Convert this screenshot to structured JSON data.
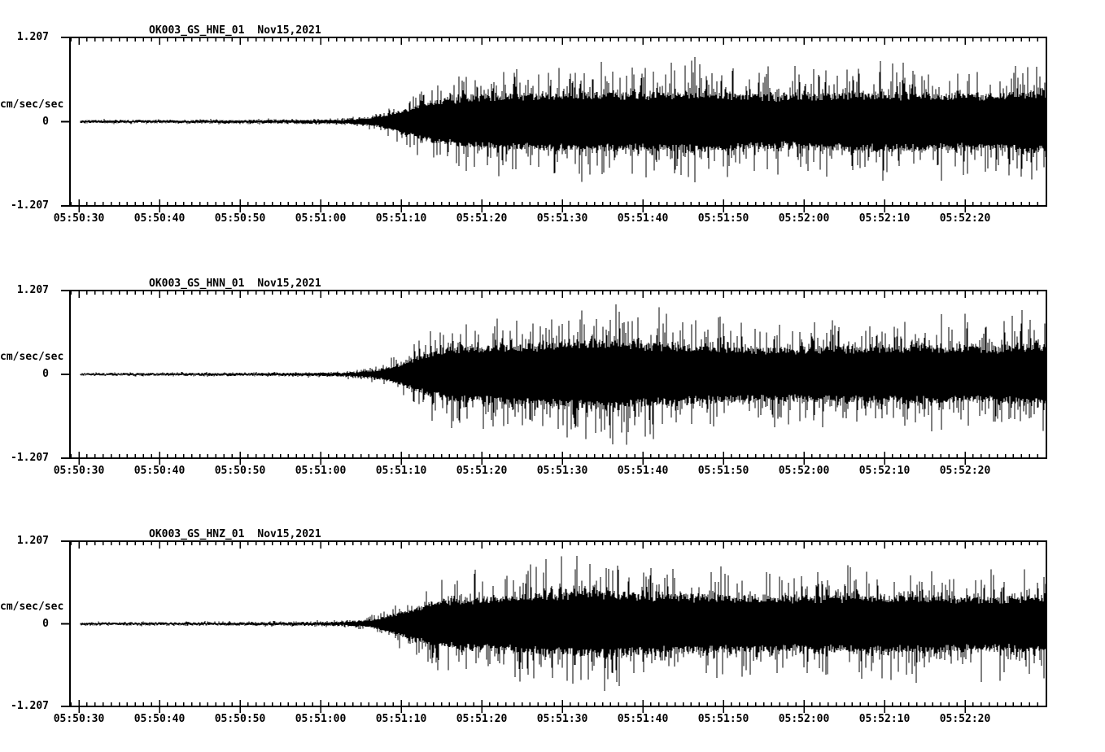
{
  "page": {
    "background_color": "#ffffff",
    "ink_color": "#000000",
    "description": "Three-channel strong-motion seismogram record display"
  },
  "chart_data": [
    {
      "type": "line",
      "kind": "seismogram-waveform",
      "station": "OK003_GS_HNE_01",
      "date": "Nov15,2021",
      "title": "OK003_GS_HNE_01  Nov15,2021",
      "ylabel": "cm/sec/sec",
      "ymax_label": "1.207",
      "yzero_label": "0",
      "ymin_label": "-1.207",
      "ylim": [
        -1.207,
        1.207
      ],
      "xtick_labels": [
        "05:50:30",
        "05:50:40",
        "05:50:50",
        "05:51:00",
        "05:51:10",
        "05:51:20",
        "05:51:30",
        "05:51:40",
        "05:51:50",
        "05:52:00",
        "05:52:10",
        "05:52:20"
      ],
      "x_span_seconds": 120,
      "seconds_per_minor_tick": 1,
      "seconds_per_major_tick": 10,
      "grid": false,
      "legend": false,
      "envelope_t_amp": [
        [
          0,
          0.03
        ],
        [
          10,
          0.032
        ],
        [
          20,
          0.036
        ],
        [
          28,
          0.04
        ],
        [
          33,
          0.055
        ],
        [
          36,
          0.1
        ],
        [
          38,
          0.18
        ],
        [
          40,
          0.32
        ],
        [
          42,
          0.45
        ],
        [
          44,
          0.6
        ],
        [
          47,
          0.7
        ],
        [
          52,
          0.78
        ],
        [
          58,
          0.8
        ],
        [
          64,
          0.83
        ],
        [
          70,
          0.8
        ],
        [
          76,
          0.85
        ],
        [
          82,
          0.78
        ],
        [
          88,
          0.75
        ],
        [
          94,
          0.8
        ],
        [
          100,
          0.83
        ],
        [
          106,
          0.8
        ],
        [
          112,
          0.78
        ],
        [
          117,
          0.84
        ],
        [
          120,
          0.88
        ]
      ],
      "noise_seed": 11
    },
    {
      "type": "line",
      "kind": "seismogram-waveform",
      "station": "OK003_GS_HNN_01",
      "date": "Nov15,2021",
      "title": "OK003_GS_HNN_01  Nov15,2021",
      "ylabel": "cm/sec/sec",
      "ymax_label": "1.207",
      "yzero_label": "0",
      "ymin_label": "-1.207",
      "ylim": [
        -1.207,
        1.207
      ],
      "xtick_labels": [
        "05:50:30",
        "05:50:40",
        "05:50:50",
        "05:51:00",
        "05:51:10",
        "05:51:20",
        "05:51:30",
        "05:51:40",
        "05:51:50",
        "05:52:00",
        "05:52:10",
        "05:52:20"
      ],
      "x_span_seconds": 120,
      "seconds_per_minor_tick": 1,
      "seconds_per_major_tick": 10,
      "grid": false,
      "legend": false,
      "envelope_t_amp": [
        [
          0,
          0.025
        ],
        [
          10,
          0.028
        ],
        [
          20,
          0.032
        ],
        [
          28,
          0.038
        ],
        [
          33,
          0.05
        ],
        [
          36,
          0.09
        ],
        [
          38,
          0.16
        ],
        [
          40,
          0.3
        ],
        [
          42,
          0.5
        ],
        [
          44,
          0.65
        ],
        [
          47,
          0.78
        ],
        [
          52,
          0.82
        ],
        [
          58,
          0.88
        ],
        [
          62,
          0.95
        ],
        [
          66,
          1.0
        ],
        [
          70,
          0.9
        ],
        [
          76,
          0.82
        ],
        [
          82,
          0.78
        ],
        [
          88,
          0.75
        ],
        [
          94,
          0.78
        ],
        [
          100,
          0.8
        ],
        [
          106,
          0.82
        ],
        [
          112,
          0.78
        ],
        [
          117,
          0.85
        ],
        [
          120,
          0.88
        ]
      ],
      "noise_seed": 22
    },
    {
      "type": "line",
      "kind": "seismogram-waveform",
      "station": "OK003_GS_HNZ_01",
      "date": "Nov15,2021",
      "title": "OK003_GS_HNZ_01  Nov15,2021",
      "ylabel": "cm/sec/sec",
      "ymax_label": "1.207",
      "yzero_label": "0",
      "ymin_label": "-1.207",
      "ylim": [
        -1.207,
        1.207
      ],
      "xtick_labels": [
        "05:50:30",
        "05:50:40",
        "05:50:50",
        "05:51:00",
        "05:51:10",
        "05:51:20",
        "05:51:30",
        "05:51:40",
        "05:51:50",
        "05:52:00",
        "05:52:10",
        "05:52:20"
      ],
      "x_span_seconds": 120,
      "seconds_per_minor_tick": 1,
      "seconds_per_major_tick": 10,
      "grid": false,
      "legend": false,
      "envelope_t_amp": [
        [
          0,
          0.028
        ],
        [
          10,
          0.03
        ],
        [
          20,
          0.034
        ],
        [
          28,
          0.04
        ],
        [
          33,
          0.055
        ],
        [
          36,
          0.1
        ],
        [
          38,
          0.2
        ],
        [
          40,
          0.35
        ],
        [
          42,
          0.5
        ],
        [
          44,
          0.62
        ],
        [
          47,
          0.72
        ],
        [
          52,
          0.8
        ],
        [
          56,
          0.85
        ],
        [
          60,
          0.88
        ],
        [
          64,
          0.97
        ],
        [
          68,
          0.9
        ],
        [
          72,
          0.85
        ],
        [
          78,
          0.82
        ],
        [
          84,
          0.8
        ],
        [
          90,
          0.78
        ],
        [
          96,
          0.8
        ],
        [
          102,
          0.82
        ],
        [
          108,
          0.78
        ],
        [
          114,
          0.76
        ],
        [
          120,
          0.82
        ]
      ],
      "noise_seed": 33
    }
  ]
}
